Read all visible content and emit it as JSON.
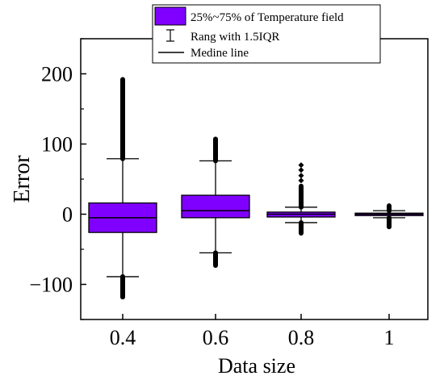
{
  "chart_data": {
    "type": "box",
    "title": "",
    "xlabel": "Data size",
    "ylabel": "Error",
    "categories": [
      "0.4",
      "0.6",
      "0.8",
      "1"
    ],
    "ylim": [
      -150,
      250
    ],
    "yticks": [
      -100,
      0,
      100,
      200
    ],
    "ytick_labels": [
      "−100",
      "0",
      "100",
      "200"
    ],
    "grid": false,
    "legend_position": "top-right",
    "legend": [
      {
        "kind": "box",
        "label": "25%~75% of Temperature field"
      },
      {
        "kind": "whisker",
        "label": "Rang with 1.5IQR"
      },
      {
        "kind": "median",
        "label": "Medine line"
      }
    ],
    "colors": {
      "box_fill": "#8000FF",
      "stroke": "#000000"
    },
    "boxes": [
      {
        "category": "0.4",
        "whisker_low": -89,
        "q1": -26,
        "median": -5,
        "q3": 16,
        "whisker_high": 79,
        "outlier_low": -118,
        "outlier_high": 192
      },
      {
        "category": "0.6",
        "whisker_low": -55,
        "q1": -5,
        "median": 5,
        "q3": 27,
        "whisker_high": 76,
        "outlier_low": -73,
        "outlier_high": 107
      },
      {
        "category": "0.8",
        "whisker_low": -12,
        "q1": -4,
        "median": 0,
        "q3": 3,
        "whisker_high": 10,
        "outlier_low": -27,
        "outlier_high": 40,
        "sparse_outliers": [
          48,
          55,
          63,
          70
        ]
      },
      {
        "category": "1",
        "whisker_low": -5,
        "q1": -1.5,
        "median": 0,
        "q3": 1.5,
        "whisker_high": 5,
        "outlier_low": -18,
        "outlier_high": 12
      }
    ]
  }
}
